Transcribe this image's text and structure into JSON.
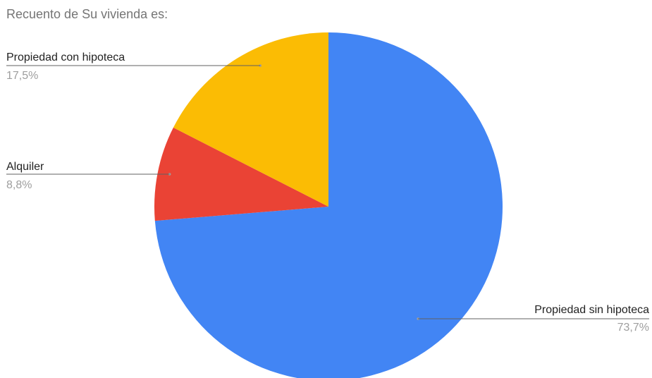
{
  "chart_data": {
    "type": "pie",
    "title": "Recuento de Su vivienda es:",
    "slices": [
      {
        "label": "Propiedad sin hipoteca",
        "percent": 73.7,
        "percent_label": "73,7%",
        "color": "#4285f4"
      },
      {
        "label": "Alquiler",
        "percent": 8.8,
        "percent_label": "8,8%",
        "color": "#ea4335"
      },
      {
        "label": "Propiedad con hipoteca",
        "percent": 17.5,
        "percent_label": "17,5%",
        "color": "#fbbc04"
      }
    ],
    "start_angle_deg": 0,
    "direction": "clockwise",
    "legend": "none"
  }
}
